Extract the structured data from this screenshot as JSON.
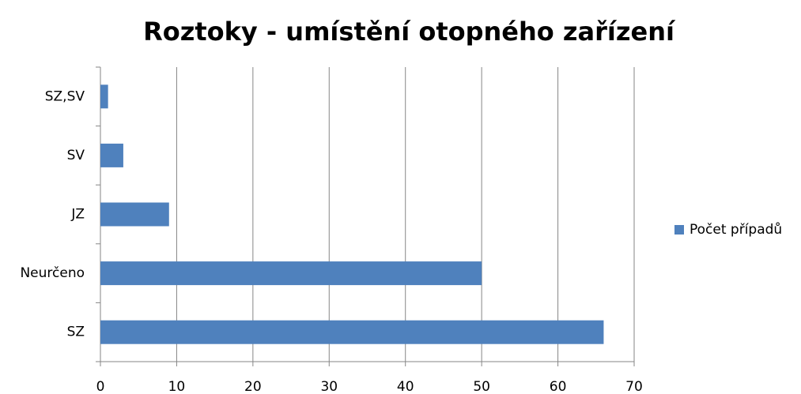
{
  "chart_data": {
    "type": "hbar",
    "title": "Roztoky - umístění otopného zařízení",
    "categories": [
      "SZ",
      "Neurčeno",
      "JZ",
      "SV",
      "SZ,SV"
    ],
    "series": [
      {
        "name": "Počet případů",
        "color": "#4f81bd",
        "values": [
          66,
          50,
          9,
          3,
          1
        ]
      }
    ],
    "xlim": [
      0,
      70
    ],
    "xticks": [
      0,
      10,
      20,
      30,
      40,
      50,
      60,
      70
    ],
    "grid": true,
    "legend": "right"
  }
}
